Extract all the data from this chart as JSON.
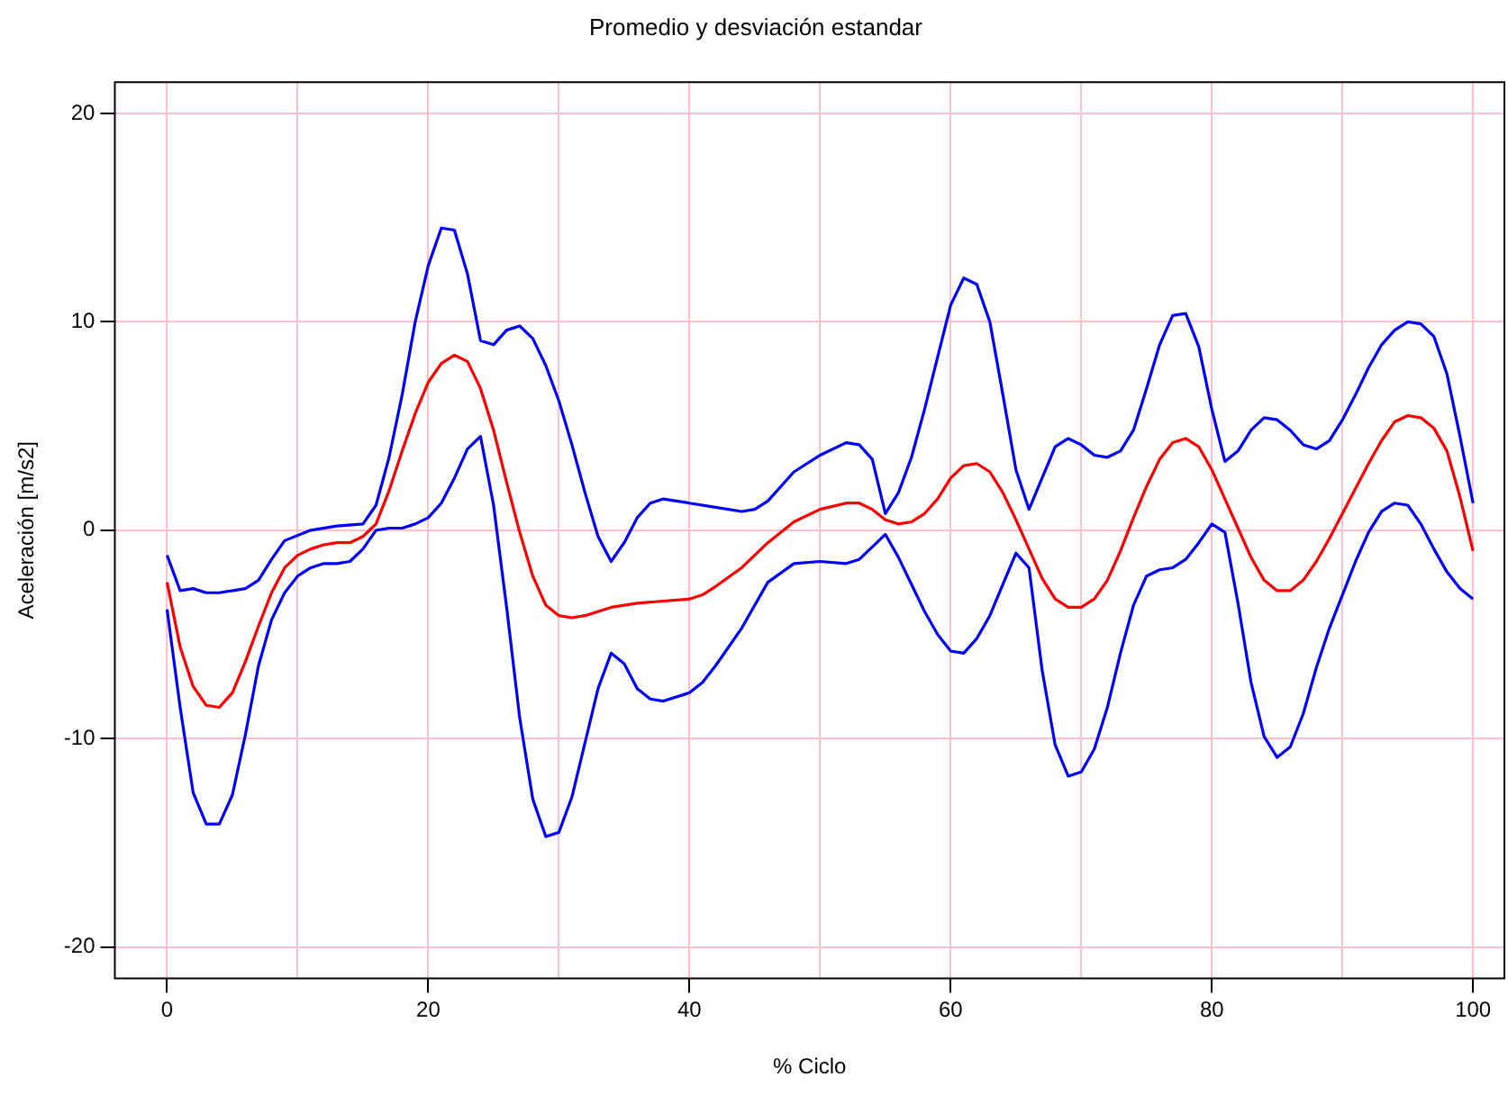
{
  "chart_data": {
    "type": "line",
    "title": "Promedio y desviación estandar",
    "xlabel": "% Ciclo",
    "ylabel": "Aceleración [m/s2]",
    "xlim": [
      -4,
      102.4
    ],
    "ylim": [
      -21.5,
      21.5
    ],
    "xticks": [
      0,
      {
        "value": 10,
        "label": null
      },
      20,
      {
        "value": 30,
        "label": null
      },
      40,
      {
        "value": 50,
        "label": null
      },
      60,
      {
        "value": 70,
        "label": null
      },
      80,
      {
        "value": 90,
        "label": null
      },
      100
    ],
    "yticks": [
      -20,
      -10,
      0,
      10,
      20
    ],
    "grid": true,
    "legend": false,
    "marker": "none",
    "line_style": "solid",
    "series": [
      {
        "color": "#0000ff",
        "x": [
          0,
          1,
          2,
          3,
          4,
          6,
          7,
          8,
          9,
          11,
          13,
          15,
          16,
          17,
          18,
          19,
          20,
          21,
          22,
          23,
          24,
          25,
          26,
          27,
          28,
          29,
          30,
          31,
          32,
          33,
          34,
          35,
          36,
          37,
          38,
          40,
          42,
          44,
          45,
          46,
          48,
          50,
          52,
          53,
          54,
          55,
          56,
          57,
          58,
          59,
          60,
          61,
          62,
          63,
          64,
          65,
          66,
          67,
          68,
          69,
          70,
          71,
          72,
          73,
          74,
          75,
          76,
          77,
          78,
          79,
          80,
          81,
          82,
          83,
          84,
          85,
          86,
          87,
          88,
          89,
          90,
          91,
          92,
          93,
          94,
          95,
          96,
          97,
          98,
          99,
          100
        ],
        "values": [
          -1.2,
          -2.9,
          -2.8,
          -3.0,
          -3.0,
          -2.8,
          -2.4,
          -1.4,
          -0.5,
          0,
          0.2,
          0.3,
          1.2,
          3.5,
          6.5,
          10,
          12.7,
          14.5,
          14.4,
          12.3,
          9.1,
          8.9,
          9.6,
          9.8,
          9.2,
          7.9,
          6.2,
          4.1,
          1.8,
          -0.3,
          -1.5,
          -0.6,
          0.6,
          1.3,
          1.5,
          1.3,
          1.1,
          0.9,
          1.0,
          1.4,
          2.8,
          3.6,
          4.2,
          4.1,
          3.4,
          0.8,
          1.8,
          3.5,
          5.8,
          8.3,
          10.8,
          12.1,
          11.8,
          10.0,
          6.5,
          2.9,
          1.0,
          2.5,
          4.0,
          4.4,
          4.1,
          3.6,
          3.5,
          3.8,
          4.8,
          6.8,
          8.9,
          10.3,
          10.4,
          8.8,
          5.8,
          3.3,
          3.8,
          4.8,
          5.4,
          5.3,
          4.8,
          4.1,
          3.9,
          4.3,
          5.3,
          6.5,
          7.8,
          8.9,
          9.6,
          10.0,
          9.9,
          9.3,
          7.5,
          4.5,
          1.3
        ]
      },
      {
        "color": "#ff0000",
        "x": [
          0,
          1,
          2,
          3,
          4,
          5,
          6,
          7,
          8,
          9,
          10,
          11,
          12,
          13,
          14,
          15,
          16,
          17,
          18,
          19,
          20,
          21,
          22,
          23,
          24,
          25,
          26,
          27,
          28,
          29,
          30,
          31,
          32,
          34,
          36,
          38,
          40,
          41,
          42,
          44,
          46,
          48,
          50,
          52,
          53,
          54,
          55,
          56,
          57,
          58,
          59,
          60,
          61,
          62,
          63,
          64,
          65,
          66,
          67,
          68,
          69,
          70,
          71,
          72,
          73,
          74,
          75,
          76,
          77,
          78,
          79,
          80,
          81,
          82,
          83,
          84,
          85,
          86,
          87,
          88,
          89,
          90,
          91,
          92,
          93,
          94,
          95,
          96,
          97,
          98,
          99,
          100
        ],
        "values": [
          -2.5,
          -5.6,
          -7.5,
          -8.4,
          -8.5,
          -7.8,
          -6.3,
          -4.6,
          -3.0,
          -1.8,
          -1.2,
          -0.9,
          -0.7,
          -0.6,
          -0.6,
          -0.3,
          0.3,
          1.9,
          3.8,
          5.6,
          7.1,
          8.0,
          8.4,
          8.1,
          6.8,
          4.8,
          2.3,
          -0.1,
          -2.2,
          -3.6,
          -4.1,
          -4.2,
          -4.1,
          -3.7,
          -3.5,
          -3.4,
          -3.3,
          -3.1,
          -2.7,
          -1.8,
          -0.6,
          0.4,
          1.0,
          1.3,
          1.3,
          1.0,
          0.5,
          0.3,
          0.4,
          0.8,
          1.5,
          2.5,
          3.1,
          3.2,
          2.8,
          1.8,
          0.5,
          -0.9,
          -2.3,
          -3.3,
          -3.7,
          -3.7,
          -3.3,
          -2.4,
          -1.0,
          0.6,
          2.1,
          3.4,
          4.2,
          4.4,
          4.0,
          2.9,
          1.5,
          0.1,
          -1.3,
          -2.4,
          -2.9,
          -2.9,
          -2.4,
          -1.5,
          -0.4,
          0.8,
          2.0,
          3.2,
          4.3,
          5.2,
          5.5,
          5.4,
          4.9,
          3.8,
          1.6,
          -1.0
        ]
      },
      {
        "color": "#0000ff",
        "x": [
          0,
          1,
          2,
          3,
          4,
          5,
          6,
          7,
          8,
          9,
          10,
          11,
          12,
          13,
          14,
          15,
          16,
          17,
          18,
          19,
          20,
          21,
          22,
          23,
          24,
          25,
          26,
          27,
          28,
          29,
          30,
          31,
          32,
          33,
          34,
          35,
          36,
          37,
          38,
          40,
          41,
          42,
          44,
          46,
          48,
          50,
          52,
          53,
          54,
          55,
          56,
          57,
          58,
          59,
          60,
          61,
          62,
          63,
          64,
          65,
          66,
          67,
          68,
          69,
          70,
          71,
          72,
          73,
          74,
          75,
          76,
          77,
          78,
          79,
          80,
          81,
          82,
          83,
          84,
          85,
          86,
          87,
          88,
          89,
          90,
          91,
          92,
          93,
          94,
          95,
          96,
          97,
          98,
          99,
          100
        ],
        "values": [
          -3.8,
          -8.5,
          -12.6,
          -14.1,
          -14.1,
          -12.7,
          -9.8,
          -6.5,
          -4.3,
          -3.0,
          -2.2,
          -1.8,
          -1.6,
          -1.6,
          -1.5,
          -0.9,
          0,
          0.1,
          0.1,
          0.3,
          0.6,
          1.3,
          2.5,
          3.9,
          4.5,
          1.2,
          -3.7,
          -9.0,
          -12.9,
          -14.7,
          -14.5,
          -12.8,
          -10.2,
          -7.6,
          -5.9,
          -6.4,
          -7.6,
          -8.1,
          -8.2,
          -7.8,
          -7.3,
          -6.5,
          -4.7,
          -2.5,
          -1.6,
          -1.5,
          -1.6,
          -1.4,
          -0.8,
          -0.2,
          -1.3,
          -2.6,
          -3.9,
          -5.0,
          -5.8,
          -5.9,
          -5.2,
          -4.1,
          -2.6,
          -1.1,
          -1.8,
          -6.7,
          -10.3,
          -11.8,
          -11.6,
          -10.5,
          -8.5,
          -5.9,
          -3.6,
          -2.2,
          -1.9,
          -1.8,
          -1.4,
          -0.6,
          0.3,
          -0.1,
          -3.5,
          -7.3,
          -9.9,
          -10.9,
          -10.4,
          -8.8,
          -6.6,
          -4.7,
          -3.1,
          -1.5,
          -0.1,
          0.9,
          1.3,
          1.2,
          0.3,
          -0.9,
          -2.0,
          -2.8,
          -3.3
        ]
      }
    ]
  }
}
